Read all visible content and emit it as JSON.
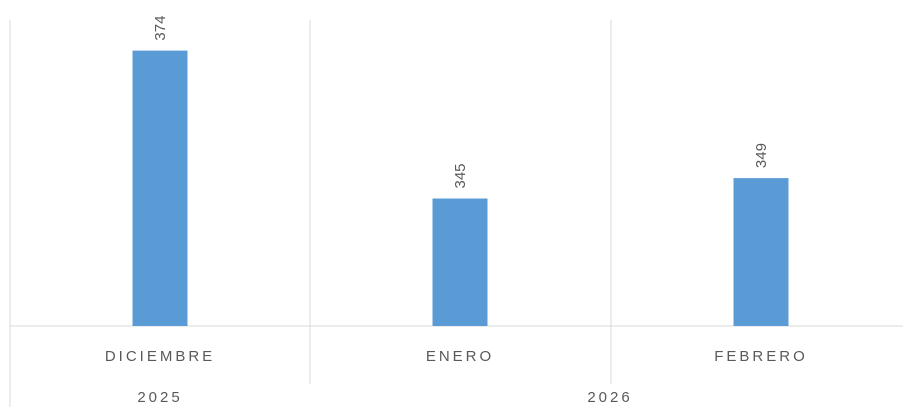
{
  "chart_data": {
    "type": "bar",
    "categories": [
      "DICIEMBRE",
      "ENERO",
      "FEBRERO"
    ],
    "groups": [
      {
        "label": "2025",
        "categories": [
          "DICIEMBRE"
        ]
      },
      {
        "label": "2026",
        "categories": [
          "ENERO",
          "FEBRERO"
        ]
      }
    ],
    "series": [
      {
        "values": [
          374,
          345,
          349
        ],
        "color": "#5b9bd5"
      }
    ],
    "data_labels": [
      "374",
      "345",
      "349"
    ],
    "ylim": [
      320,
      380
    ],
    "grid": true,
    "legend": "none"
  }
}
